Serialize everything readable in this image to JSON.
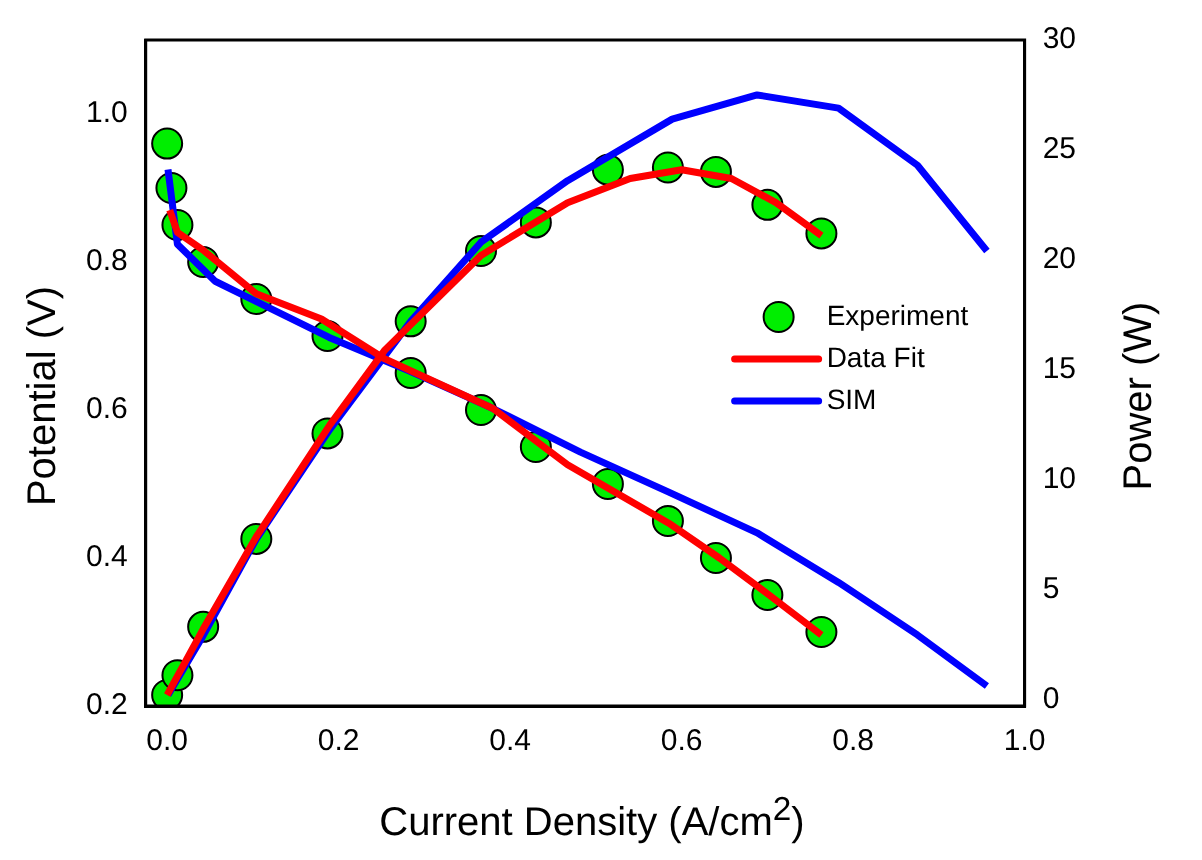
{
  "chart_data": {
    "type": "line",
    "xlabel": "Current Density (A/cm$^{2}$)",
    "ylabel": "Potential (V)",
    "y2label": "Power (W)",
    "xlim": [
      -0.025,
      1.0
    ],
    "xticks": [
      {
        "value": 0,
        "label": "0.0"
      },
      {
        "value": 0.2,
        "label": "0.2"
      },
      {
        "value": 0.4,
        "label": "0.4"
      },
      {
        "value": 0.6,
        "label": "0.6"
      },
      {
        "value": 0.8,
        "label": "0.8"
      },
      {
        "value": 1,
        "label": "1.0"
      }
    ],
    "ylim": [
      0.2,
      1.1
    ],
    "yticks": [
      {
        "value": 0.2,
        "label": "0.2"
      },
      {
        "value": 0.4,
        "label": "0.4"
      },
      {
        "value": 0.6,
        "label": "0.6"
      },
      {
        "value": 0.8,
        "label": "0.8"
      },
      {
        "value": 1,
        "label": "1.0"
      }
    ],
    "y2lim": [
      -0.3,
      30
    ],
    "y2ticks": [
      0,
      5,
      10,
      15,
      20,
      25,
      30
    ],
    "grid": false,
    "legend": "right",
    "series": [
      {
        "name": "Experiment",
        "type": "scatter",
        "marker": "circle",
        "color": "#00ee00",
        "axis": "y",
        "x": [
          0,
          0.005,
          0.012,
          0.042,
          0.104,
          0.187,
          0.284,
          0.366,
          0.43,
          0.514,
          0.584,
          0.64,
          0.7,
          0.763
        ],
        "values": [
          0.96,
          0.9,
          0.85,
          0.8,
          0.75,
          0.7,
          0.65,
          0.6,
          0.55,
          0.5,
          0.45,
          0.4,
          0.35,
          0.3
        ]
      },
      {
        "type": "scatter",
        "marker": "circle",
        "color": "#00ee00",
        "axis": "y2",
        "x": [
          0,
          0.012,
          0.042,
          0.104,
          0.187,
          0.284,
          0.366,
          0.43,
          0.514,
          0.584,
          0.64,
          0.7,
          0.763
        ],
        "values": [
          0.2,
          1.1,
          3.3,
          7.3,
          12.1,
          17.2,
          20.4,
          21.7,
          24.1,
          24.2,
          24.0,
          22.5,
          21.2
        ]
      },
      {
        "name": "Data Fit",
        "type": "line",
        "marker": "none",
        "color": "#ff0000",
        "axis": "y",
        "x": [
          0.003,
          0.012,
          0.042,
          0.104,
          0.18,
          0.254,
          0.38,
          0.467,
          0.585,
          0.644,
          0.702,
          0.763
        ],
        "values": [
          0.87,
          0.84,
          0.816,
          0.757,
          0.723,
          0.669,
          0.602,
          0.526,
          0.447,
          0.4,
          0.35,
          0.296
        ]
      },
      {
        "type": "line",
        "marker": "none",
        "color": "#ff0000",
        "axis": "y2",
        "x": [
          0,
          0.042,
          0.104,
          0.19,
          0.254,
          0.366,
          0.467,
          0.54,
          0.6,
          0.658,
          0.71,
          0.763
        ],
        "values": [
          0.2,
          3.2,
          7.4,
          12.5,
          15.9,
          20.2,
          22.6,
          23.7,
          24.1,
          23.7,
          22.6,
          21.1
        ]
      },
      {
        "name": "SIM",
        "type": "line",
        "marker": "none",
        "color": "#0000ff",
        "axis": "y",
        "x": [
          0.001,
          0.012,
          0.056,
          0.189,
          0.284,
          0.38,
          0.482,
          0.585,
          0.688,
          0.783,
          0.875,
          0.956
        ],
        "values": [
          0.925,
          0.824,
          0.774,
          0.698,
          0.652,
          0.602,
          0.543,
          0.489,
          0.434,
          0.367,
          0.296,
          0.227
        ]
      },
      {
        "type": "line",
        "marker": "none",
        "color": "#0000ff",
        "axis": "y2",
        "x": [
          0.001,
          0.042,
          0.104,
          0.19,
          0.284,
          0.366,
          0.467,
          0.589,
          0.688,
          0.783,
          0.875,
          0.956
        ],
        "values": [
          0.2,
          2.9,
          7.3,
          12.3,
          17.2,
          20.8,
          23.6,
          26.4,
          27.5,
          26.9,
          24.3,
          20.4
        ]
      }
    ]
  }
}
